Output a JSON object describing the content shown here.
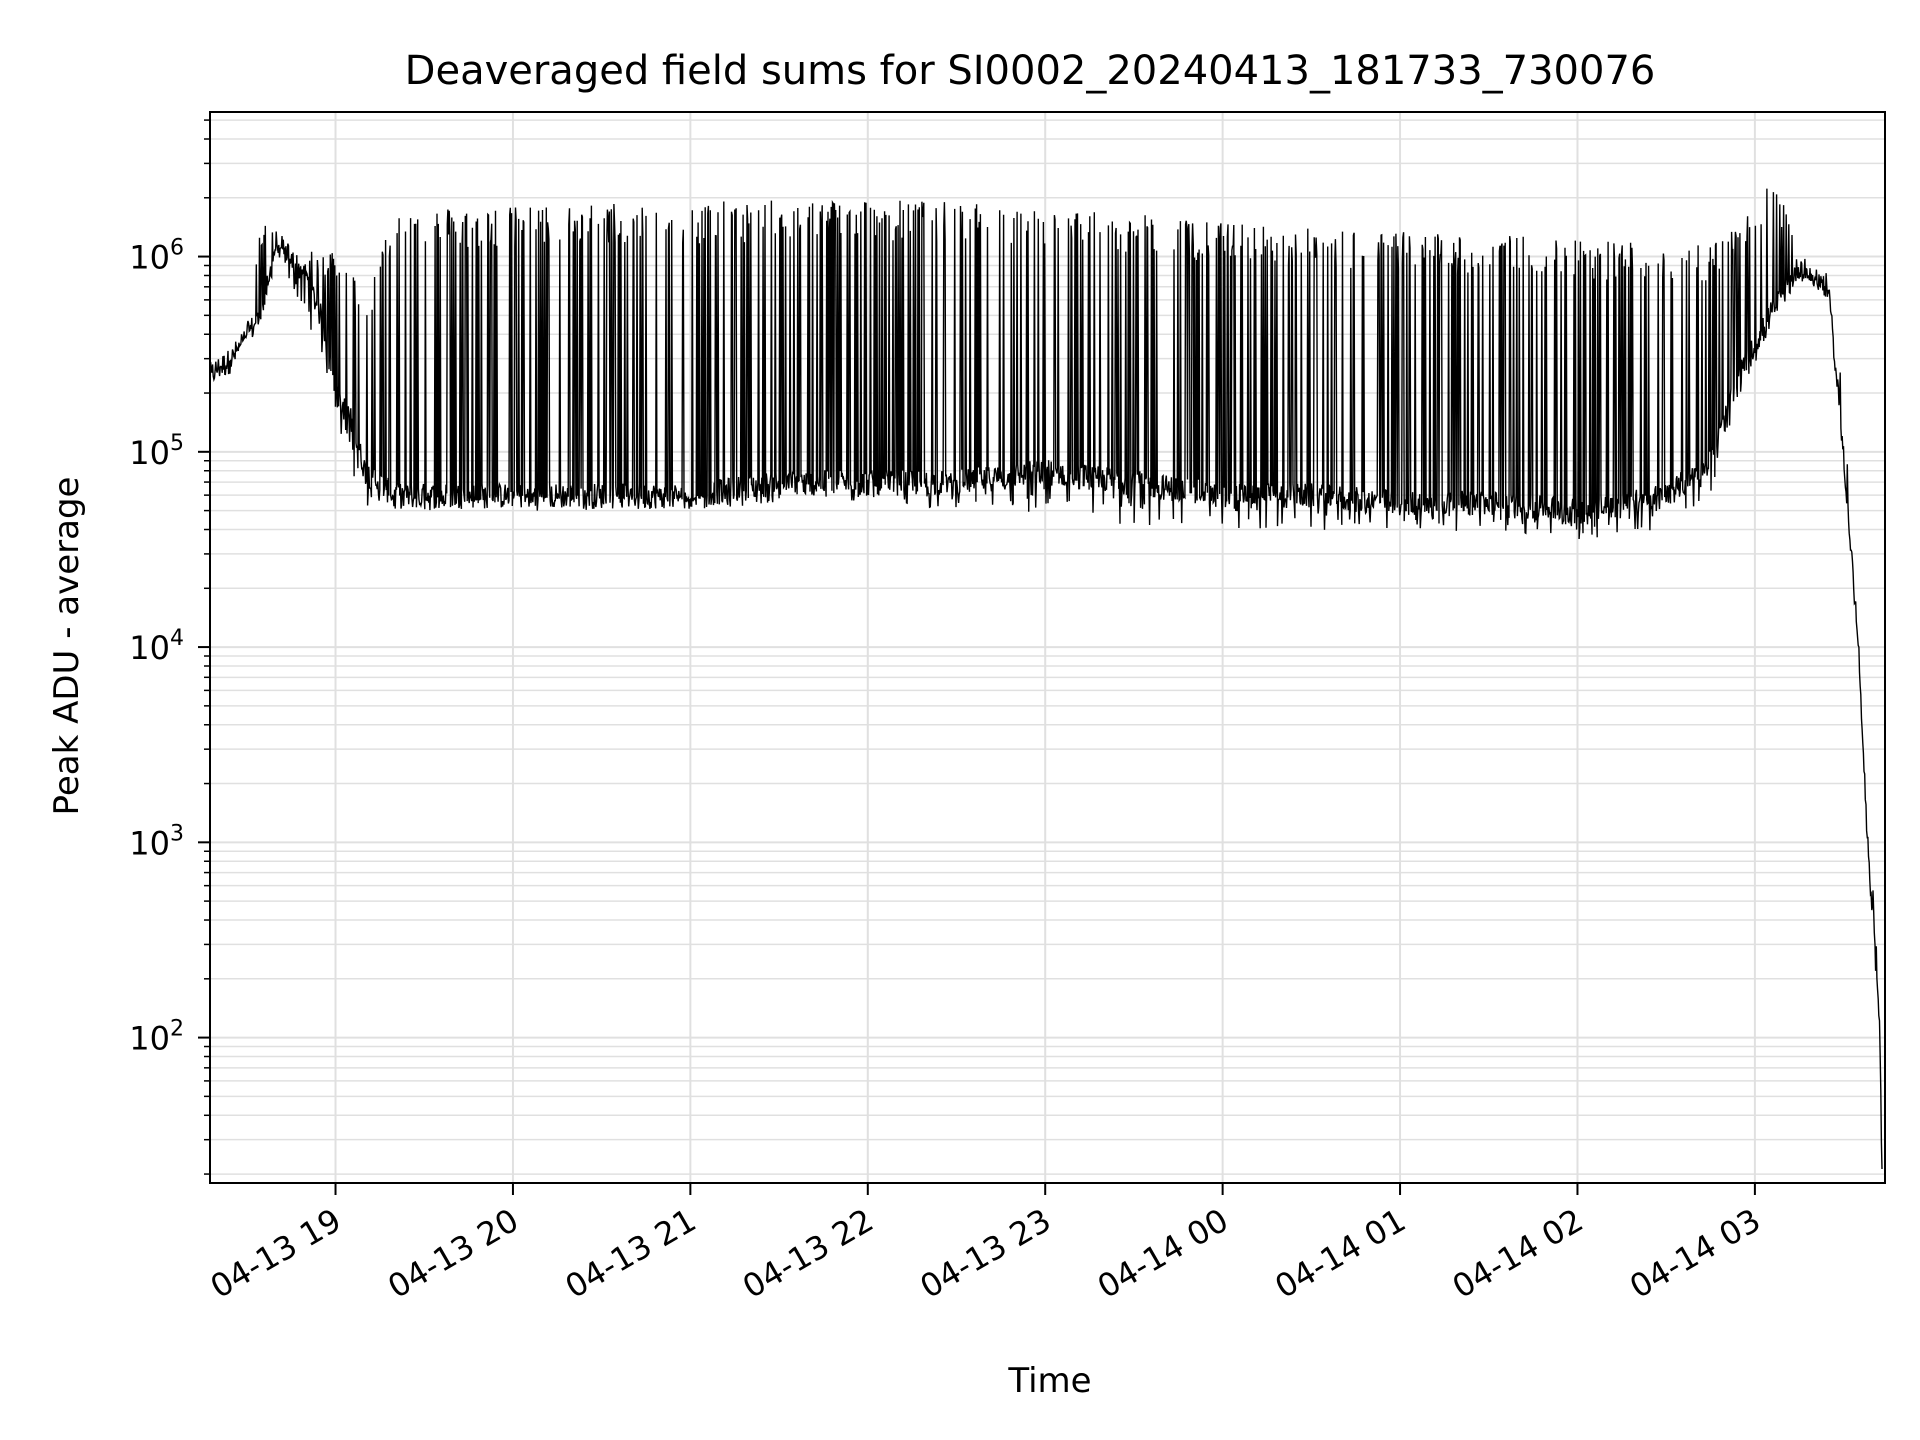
{
  "chart_data": {
    "type": "line",
    "title": "Deaveraged field sums for SI0002_20240413_181733_730076",
    "xlabel": "Time",
    "ylabel": "Peak ADU - average",
    "yscale": "log",
    "ylim": [
      18,
      5500000
    ],
    "xlim": [
      "2024-04-13 18:17:33",
      "2024-04-14 03:44:00"
    ],
    "grid": true,
    "line_color": "#000000",
    "grid_color": "#e0e0e0",
    "x_ticks": [
      {
        "value": "2024-04-13 19:00",
        "label": "04-13 19"
      },
      {
        "value": "2024-04-13 20:00",
        "label": "04-13 20"
      },
      {
        "value": "2024-04-13 21:00",
        "label": "04-13 21"
      },
      {
        "value": "2024-04-13 22:00",
        "label": "04-13 22"
      },
      {
        "value": "2024-04-13 23:00",
        "label": "04-13 23"
      },
      {
        "value": "2024-04-14 00:00",
        "label": "04-14 00"
      },
      {
        "value": "2024-04-14 01:00",
        "label": "04-14 01"
      },
      {
        "value": "2024-04-14 02:00",
        "label": "04-14 02"
      },
      {
        "value": "2024-04-14 03:00",
        "label": "04-14 03"
      }
    ],
    "y_ticks": [
      {
        "value": 100,
        "base": "10",
        "exp": "2"
      },
      {
        "value": 1000,
        "base": "10",
        "exp": "3"
      },
      {
        "value": 10000,
        "base": "10",
        "exp": "4"
      },
      {
        "value": 100000,
        "base": "10",
        "exp": "5"
      },
      {
        "value": 1000000,
        "base": "10",
        "exp": "6"
      }
    ],
    "series": [
      {
        "x": [
          "2024-04-13 18:17:33",
          "2024-04-13 18:25",
          "2024-04-13 18:30",
          "2024-04-13 18:35",
          "2024-04-13 18:40",
          "2024-04-13 18:50",
          "2024-04-13 18:55",
          "2024-04-13 19:00",
          "2024-04-13 19:05",
          "2024-04-13 19:10",
          "2024-04-13 19:20",
          "2024-04-13 19:40",
          "2024-04-13 20:00",
          "2024-04-13 20:30",
          "2024-04-13 21:00",
          "2024-04-13 21:30",
          "2024-04-13 22:00",
          "2024-04-13 22:30",
          "2024-04-13 23:00",
          "2024-04-13 23:30",
          "2024-04-14 00:00",
          "2024-04-14 00:30",
          "2024-04-14 01:00",
          "2024-04-14 01:30",
          "2024-04-14 02:00",
          "2024-04-14 02:30",
          "2024-04-14 02:45",
          "2024-04-14 02:55",
          "2024-04-14 03:05",
          "2024-04-14 03:15",
          "2024-04-14 03:25",
          "2024-04-14 03:30",
          "2024-04-14 03:35",
          "2024-04-14 03:38",
          "2024-04-14 03:40",
          "2024-04-14 03:42",
          "2024-04-14 03:43"
        ],
        "y": [
          250000,
          300000,
          400000,
          500000,
          1200000,
          800000,
          500000,
          200000,
          150000,
          80000,
          60000,
          60000,
          60000,
          60000,
          60000,
          70000,
          70000,
          70000,
          80000,
          70000,
          60000,
          60000,
          55000,
          55000,
          50000,
          60000,
          90000,
          250000,
          500000,
          900000,
          700000,
          100000,
          10000,
          1000,
          500,
          150,
          20
        ],
        "y_peak": [
          300000,
          400000,
          500000,
          1500000,
          1400000,
          1100000,
          1000000,
          1200000,
          900000,
          600000,
          1800000,
          1800000,
          1800000,
          1900000,
          1900000,
          1950000,
          2000000,
          1900000,
          1750000,
          1650000,
          1500000,
          1400000,
          1350000,
          1300000,
          1250000,
          1200000,
          1200000,
          1400000,
          2500000,
          1300000,
          800000,
          200000,
          10000,
          1000,
          500,
          150,
          20
        ],
        "y_trough": [
          250000,
          300000,
          400000,
          500000,
          1000000,
          500000,
          300000,
          150000,
          80000,
          50000,
          50000,
          50000,
          50000,
          50000,
          50000,
          55000,
          55000,
          50000,
          45000,
          40000,
          40000,
          40000,
          38000,
          40000,
          35000,
          40000,
          60000,
          200000,
          400000,
          800000,
          600000,
          80000,
          10000,
          1000,
          300,
          100,
          20
        ]
      }
    ]
  }
}
